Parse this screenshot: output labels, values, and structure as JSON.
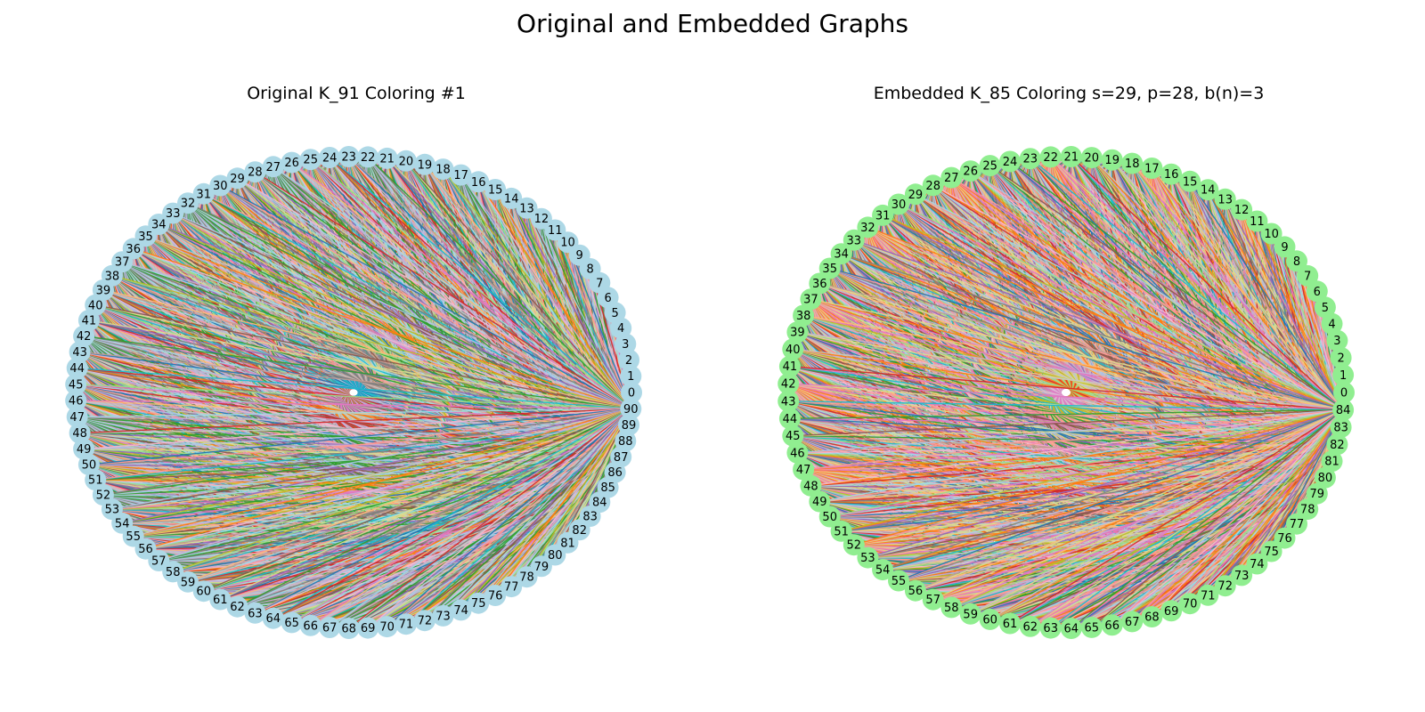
{
  "figure": {
    "title": "Original and Embedded Graphs"
  },
  "graphs": [
    {
      "title": "Original K_91 Coloring #1",
      "node_count": 91,
      "node_color": "#add8e6",
      "layout": "circular"
    },
    {
      "title": "Embedded K_85 Coloring s=29, p=28, b(n)=3",
      "node_count": 85,
      "node_color": "#90ee90",
      "layout": "circular"
    }
  ],
  "edge_palette": [
    "#1f77b4",
    "#aec7e8",
    "#ff7f0e",
    "#ffbb78",
    "#2ca02c",
    "#98df8a",
    "#d62728",
    "#ff9896",
    "#9467bd",
    "#c5b0d5",
    "#8c564b",
    "#c49c94",
    "#e377c2",
    "#f7b6d2",
    "#7f7f7f",
    "#c7c7c7",
    "#bcbd22",
    "#dbdb8d",
    "#17becf",
    "#9edae5"
  ]
}
